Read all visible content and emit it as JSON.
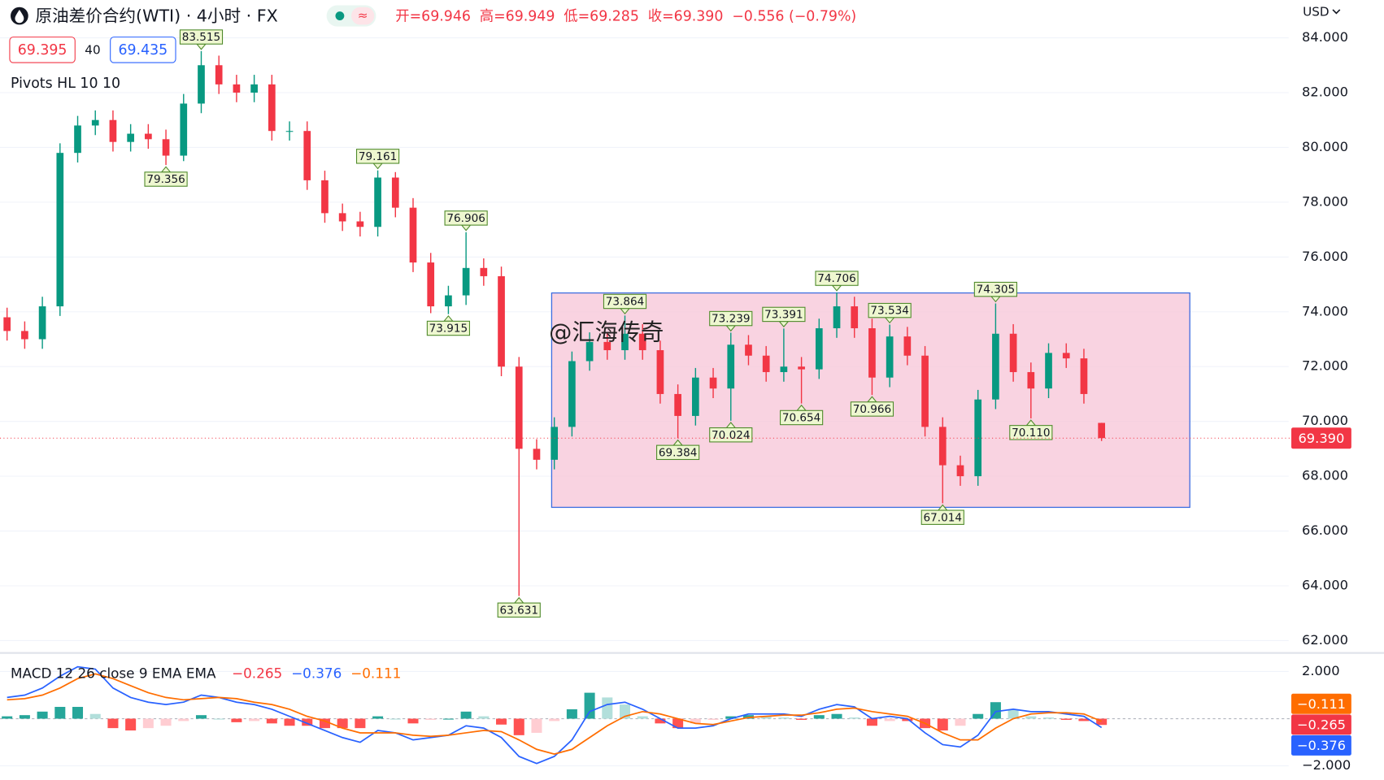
{
  "header": {
    "title": "原油差价合约(WTI) · 4小时 · FX",
    "ohlc": [
      "开=69.946",
      "高=69.949",
      "低=69.285",
      "收=69.390",
      "−0.556 (−0.79%)"
    ],
    "sell": "69.395",
    "spread": "40",
    "buy": "69.435",
    "currency": "USD"
  },
  "indicator_label": "Pivots HL 10 10",
  "watermark": "@汇海传奇",
  "chart_data": [
    {
      "type": "candlestick",
      "up_color": "#089981",
      "down_color": "#f23645",
      "grid": true,
      "ylim": [
        61.55,
        85.38
      ],
      "yticks": [
        {
          "value": 62,
          "label": "62.000"
        },
        {
          "value": 64,
          "label": "64.000"
        },
        {
          "value": 66,
          "label": "66.000"
        },
        {
          "value": 68,
          "label": "68.000"
        },
        {
          "value": 70,
          "label": "70.000"
        },
        {
          "value": 72,
          "label": "72.000"
        },
        {
          "value": 74,
          "label": "74.000"
        },
        {
          "value": 76,
          "label": "76.000"
        },
        {
          "value": 78,
          "label": "78.000"
        },
        {
          "value": 80,
          "label": "80.000"
        },
        {
          "value": 82,
          "label": "82.000"
        },
        {
          "value": 84,
          "label": "84.000"
        }
      ],
      "open": [
        73.8,
        73.3,
        73.0,
        74.2,
        79.8,
        80.8,
        81.0,
        80.2,
        80.5,
        80.3,
        79.7,
        81.6,
        83.0,
        82.3,
        82.0,
        82.3,
        80.6,
        80.6,
        78.8,
        77.6,
        77.3,
        77.1,
        78.9,
        77.8,
        75.8,
        74.2,
        74.6,
        75.6,
        75.3,
        72.0,
        69.0,
        68.6,
        69.8,
        72.2,
        72.9,
        72.6,
        73.2,
        72.6,
        71.0,
        70.2,
        71.6,
        71.2,
        72.8,
        72.4,
        71.8,
        72.0,
        71.9,
        73.4,
        74.2,
        73.4,
        71.6,
        73.1,
        72.4,
        69.8,
        68.4,
        68.0,
        70.8,
        73.2,
        71.8,
        71.2,
        72.5,
        72.3,
        69.946
      ],
      "high": [
        74.15,
        73.65,
        74.55,
        80.15,
        81.15,
        81.35,
        81.35,
        80.85,
        80.85,
        80.65,
        81.95,
        83.515,
        83.35,
        82.65,
        82.65,
        82.65,
        80.95,
        80.95,
        79.15,
        77.95,
        77.65,
        79.161,
        79.1,
        78.15,
        76.15,
        74.95,
        76.906,
        75.95,
        75.65,
        72.35,
        69.35,
        70.15,
        72.55,
        73.25,
        73.25,
        73.864,
        73.55,
        72.95,
        71.35,
        71.95,
        71.95,
        73.239,
        73.15,
        72.75,
        73.391,
        72.35,
        73.75,
        74.706,
        74.55,
        73.75,
        73.534,
        73.45,
        72.75,
        70.15,
        68.75,
        71.15,
        74.305,
        73.55,
        72.15,
        72.85,
        72.85,
        72.65,
        69.949
      ],
      "low": [
        72.95,
        72.65,
        72.65,
        73.85,
        79.45,
        80.45,
        79.85,
        79.85,
        79.95,
        79.356,
        79.5,
        81.25,
        81.95,
        81.65,
        81.65,
        80.25,
        80.25,
        78.45,
        77.25,
        76.95,
        76.75,
        76.75,
        77.45,
        75.45,
        73.95,
        73.915,
        74.25,
        74.95,
        71.65,
        63.631,
        68.25,
        68.25,
        69.45,
        71.85,
        72.25,
        72.25,
        72.25,
        70.65,
        69.384,
        69.85,
        70.85,
        70.024,
        72.05,
        71.45,
        71.45,
        70.654,
        71.55,
        73.05,
        73.05,
        70.966,
        71.25,
        72.05,
        69.45,
        67.014,
        67.65,
        67.65,
        70.45,
        71.45,
        70.11,
        70.85,
        71.95,
        70.65,
        69.285
      ],
      "close": [
        73.3,
        73.0,
        74.2,
        79.8,
        80.8,
        81.0,
        80.2,
        80.5,
        80.3,
        79.7,
        81.6,
        83.0,
        82.3,
        82.0,
        82.3,
        80.6,
        80.6,
        78.8,
        77.6,
        77.3,
        77.1,
        78.9,
        77.8,
        75.8,
        74.2,
        74.6,
        75.6,
        75.3,
        72.0,
        69.0,
        68.6,
        69.8,
        72.2,
        72.9,
        72.6,
        73.2,
        72.6,
        71.0,
        70.2,
        71.6,
        71.2,
        72.8,
        72.4,
        71.8,
        72.0,
        71.9,
        73.4,
        74.2,
        73.4,
        71.6,
        73.1,
        72.4,
        69.8,
        68.4,
        68.0,
        70.8,
        73.2,
        71.8,
        71.2,
        72.5,
        72.3,
        71.0,
        69.39
      ],
      "high_labels": [
        null,
        null,
        null,
        null,
        null,
        null,
        null,
        null,
        null,
        null,
        null,
        "83.515",
        null,
        null,
        null,
        null,
        null,
        null,
        null,
        null,
        null,
        "79.161",
        null,
        null,
        null,
        null,
        "76.906",
        null,
        null,
        null,
        null,
        null,
        null,
        null,
        null,
        "73.864",
        null,
        null,
        null,
        null,
        null,
        "73.239",
        null,
        null,
        "73.391",
        null,
        null,
        "74.706",
        null,
        null,
        "73.534",
        null,
        null,
        null,
        null,
        null,
        "74.305",
        null,
        null,
        null,
        null,
        null,
        null
      ],
      "low_labels": [
        null,
        null,
        null,
        null,
        null,
        null,
        null,
        null,
        null,
        "79.356",
        null,
        null,
        null,
        null,
        null,
        null,
        null,
        null,
        null,
        null,
        null,
        null,
        null,
        null,
        null,
        "73.915",
        null,
        null,
        null,
        "63.631",
        null,
        null,
        null,
        null,
        null,
        null,
        null,
        null,
        "69.384",
        null,
        null,
        "70.024",
        null,
        null,
        null,
        "70.654",
        null,
        null,
        null,
        "70.966",
        null,
        null,
        null,
        "67.014",
        null,
        null,
        null,
        null,
        "70.110",
        null,
        null,
        null,
        null
      ],
      "last_price": {
        "value": 69.39,
        "label": "69.390"
      }
    },
    {
      "type": "macd",
      "title": "MACD 12 26 close 9 EMA EMA",
      "ylim": [
        -2.6,
        2.75
      ],
      "yticks": [
        {
          "value": 2,
          "label": "2.000"
        },
        {
          "value": -2,
          "label": "−2.000"
        }
      ],
      "histogram": {
        "color": "#f23645",
        "last_label": "−0.265",
        "values": [
          0.1,
          0.15,
          0.3,
          0.5,
          0.5,
          0.2,
          -0.4,
          -0.5,
          -0.4,
          -0.3,
          -0.1,
          0.15,
          0.0,
          -0.15,
          -0.1,
          -0.2,
          -0.3,
          -0.3,
          -0.4,
          -0.4,
          -0.4,
          0.1,
          0.0,
          -0.2,
          -0.05,
          0.0,
          0.3,
          0.1,
          -0.25,
          -0.7,
          -0.6,
          -0.1,
          0.4,
          1.1,
          0.9,
          0.6,
          0.1,
          -0.2,
          -0.4,
          -0.2,
          -0.05,
          0.1,
          0.15,
          0.1,
          0.05,
          -0.05,
          0.15,
          0.2,
          0.05,
          -0.3,
          -0.1,
          -0.1,
          -0.4,
          -0.5,
          -0.3,
          0.2,
          0.7,
          0.4,
          0.1,
          0.05,
          -0.05,
          -0.1,
          -0.265
        ]
      },
      "macd": {
        "color": "#2962ff",
        "last_label": "−0.376",
        "values": [
          0.9,
          1.0,
          1.3,
          1.8,
          2.2,
          2.1,
          1.3,
          0.9,
          0.7,
          0.6,
          0.7,
          1.0,
          0.9,
          0.7,
          0.6,
          0.4,
          0.1,
          -0.2,
          -0.5,
          -0.8,
          -1.0,
          -0.5,
          -0.6,
          -0.9,
          -0.8,
          -0.7,
          -0.3,
          -0.4,
          -0.8,
          -1.6,
          -1.9,
          -1.6,
          -0.9,
          0.3,
          0.6,
          0.7,
          0.4,
          0.0,
          -0.4,
          -0.4,
          -0.3,
          0.0,
          0.2,
          0.2,
          0.2,
          0.1,
          0.4,
          0.6,
          0.5,
          0.0,
          0.1,
          0.0,
          -0.6,
          -1.1,
          -1.2,
          -0.7,
          0.3,
          0.4,
          0.3,
          0.3,
          0.2,
          0.1,
          -0.376
        ]
      },
      "signal": {
        "color": "#ff6d00",
        "last_label": "−0.111",
        "values": [
          0.8,
          0.85,
          1.0,
          1.3,
          1.7,
          1.9,
          1.7,
          1.4,
          1.1,
          0.9,
          0.8,
          0.85,
          0.9,
          0.85,
          0.7,
          0.6,
          0.4,
          0.1,
          -0.1,
          -0.4,
          -0.6,
          -0.6,
          -0.6,
          -0.7,
          -0.75,
          -0.7,
          -0.6,
          -0.5,
          -0.55,
          -0.9,
          -1.3,
          -1.5,
          -1.3,
          -0.8,
          -0.3,
          0.1,
          0.3,
          0.2,
          0.0,
          -0.2,
          -0.25,
          -0.1,
          0.05,
          0.1,
          0.15,
          0.15,
          0.25,
          0.4,
          0.45,
          0.3,
          0.2,
          0.1,
          -0.2,
          -0.6,
          -0.9,
          -0.9,
          -0.4,
          0.0,
          0.2,
          0.25,
          0.25,
          0.2,
          -0.111
        ]
      }
    }
  ]
}
